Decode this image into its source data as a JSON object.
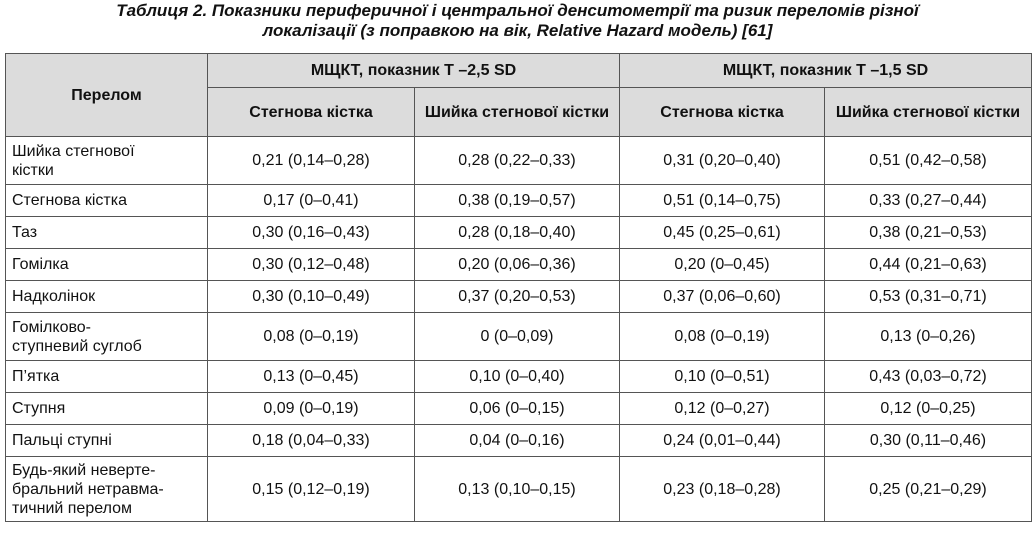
{
  "caption": {
    "line1": "Таблиця 2. Показники периферичної і центральної денситометрії та ризик переломів різної",
    "line2": "локалізації (з поправкою на вік, Relative Hazard модель) [61]"
  },
  "header": {
    "row_label": "Перелом",
    "group1": "МЩКТ, показник Т –2,5 SD",
    "group2": "МЩКТ, показник Т –1,5 SD",
    "sub": [
      "Стегнова кістка",
      "Шийка стегнової кістки",
      "Стегнова кістка",
      "Шийка стегнової кістки"
    ]
  },
  "rows": [
    {
      "label": [
        "Шийка стегнової",
        "кістки"
      ],
      "values": [
        "0,21 (0,14–0,28)",
        "0,28 (0,22–0,33)",
        "0,31 (0,20–0,40)",
        "0,51 (0,42–0,58)"
      ]
    },
    {
      "label": [
        "Стегнова кістка"
      ],
      "values": [
        "0,17 (0–0,41)",
        "0,38 (0,19–0,57)",
        "0,51 (0,14–0,75)",
        "0,33 (0,27–0,44)"
      ]
    },
    {
      "label": [
        "Таз"
      ],
      "values": [
        "0,30 (0,16–0,43)",
        "0,28 (0,18–0,40)",
        "0,45 (0,25–0,61)",
        "0,38 (0,21–0,53)"
      ]
    },
    {
      "label": [
        "Гомілка"
      ],
      "values": [
        "0,30 (0,12–0,48)",
        "0,20 (0,06–0,36)",
        "0,20 (0–0,45)",
        "0,44 (0,21–0,63)"
      ]
    },
    {
      "label": [
        "Надколінок"
      ],
      "values": [
        "0,30 (0,10–0,49)",
        "0,37 (0,20–0,53)",
        "0,37 (0,06–0,60)",
        "0,53 (0,31–0,71)"
      ]
    },
    {
      "label": [
        "Гомілково-",
        "ступневий суглоб"
      ],
      "values": [
        "0,08 (0–0,19)",
        "0 (0–0,09)",
        "0,08 (0–0,19)",
        "0,13 (0–0,26)"
      ]
    },
    {
      "label": [
        "П’ятка"
      ],
      "values": [
        "0,13 (0–0,45)",
        "0,10 (0–0,40)",
        "0,10 (0–0,51)",
        "0,43 (0,03–0,72)"
      ]
    },
    {
      "label": [
        "Ступня"
      ],
      "values": [
        "0,09 (0–0,19)",
        "0,06 (0–0,15)",
        "0,12 (0–0,27)",
        "0,12 (0–0,25)"
      ]
    },
    {
      "label": [
        "Пальці ступні"
      ],
      "values": [
        "0,18 (0,04–0,33)",
        "0,04 (0–0,16)",
        "0,24 (0,01–0,44)",
        "0,30 (0,11–0,46)"
      ]
    },
    {
      "label": [
        "Будь-який неверте-",
        "бральний нетравма-",
        "тичний перелом"
      ],
      "values": [
        "0,15 (0,12–0,19)",
        "0,13 (0,10–0,15)",
        "0,23 (0,18–0,28)",
        "0,25 (0,21–0,29)"
      ]
    }
  ]
}
